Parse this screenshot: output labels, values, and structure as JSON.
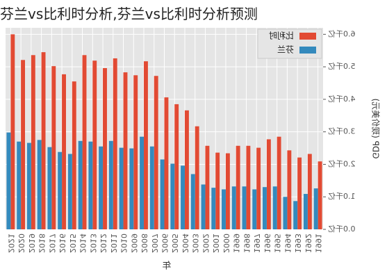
{
  "chart_data": {
    "type": "bar",
    "title": "芬兰vs比利时分析,芬兰vs比利时分析预测",
    "xlabel": "年",
    "ylabel": "GDP (现价美元)",
    "categories": [
      "1991",
      "1992",
      "1993",
      "1994",
      "1995",
      "1996",
      "1997",
      "1998",
      "1999",
      "2000",
      "2001",
      "2002",
      "2003",
      "2004",
      "2005",
      "2006",
      "2007",
      "2008",
      "2009",
      "2010",
      "2011",
      "2012",
      "2013",
      "2014",
      "2015",
      "2016",
      "2017",
      "2018",
      "2019",
      "2020",
      "2021"
    ],
    "series": [
      {
        "name": "比利时",
        "color": "#e24a33",
        "values": [
          2.09,
          2.32,
          2.21,
          2.43,
          2.85,
          2.77,
          2.51,
          2.57,
          2.57,
          2.34,
          2.36,
          2.57,
          3.17,
          3.66,
          3.85,
          4.06,
          4.72,
          5.17,
          4.74,
          4.83,
          5.26,
          4.96,
          5.19,
          5.36,
          4.55,
          4.77,
          5.02,
          5.45,
          5.36,
          5.21,
          6.0
        ]
      },
      {
        "name": "芬兰",
        "color": "#348abd",
        "values": [
          1.26,
          1.09,
          0.87,
          1.0,
          1.32,
          1.3,
          1.23,
          1.32,
          1.32,
          1.23,
          1.28,
          1.38,
          1.7,
          1.96,
          2.02,
          2.15,
          2.55,
          2.85,
          2.49,
          2.51,
          2.72,
          2.55,
          2.7,
          2.72,
          2.32,
          2.38,
          2.53,
          2.75,
          2.66,
          2.7,
          2.98
        ]
      }
    ],
    "ylim": [
      0,
      6.2
    ],
    "yticks": [
      {
        "value": 0,
        "label": "0.0千亿"
      },
      {
        "value": 1,
        "label": "1.0千亿"
      },
      {
        "value": 2,
        "label": "2.0千亿"
      },
      {
        "value": 3,
        "label": "3.0千亿"
      },
      {
        "value": 4,
        "label": "4.0千亿"
      },
      {
        "value": 5,
        "label": "5.0千亿"
      },
      {
        "value": 6,
        "label": "6.0千亿"
      }
    ],
    "grid": true,
    "mirrored": true
  }
}
